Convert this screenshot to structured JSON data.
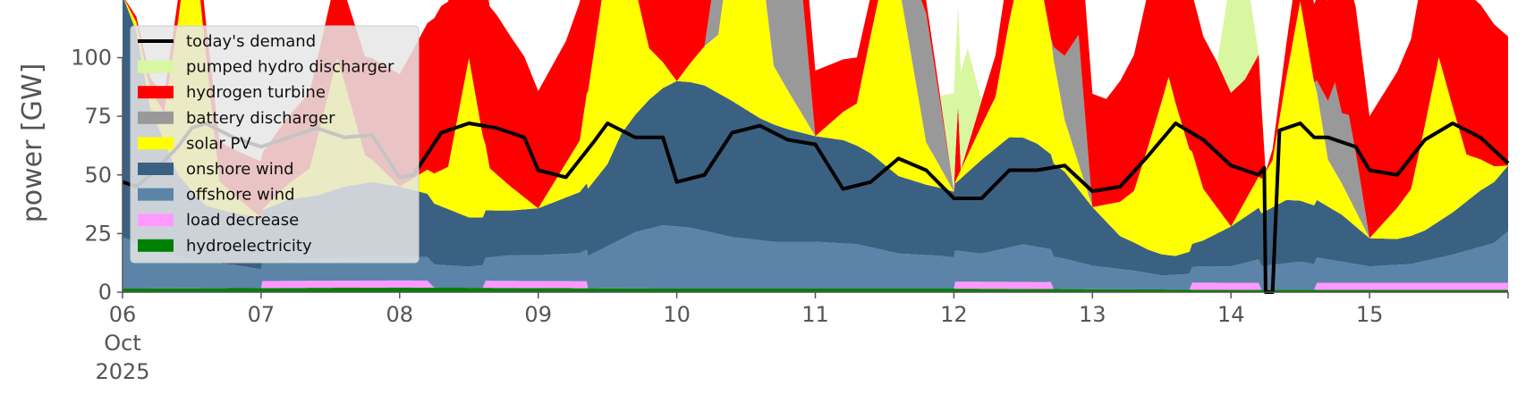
{
  "chart_data": {
    "type": "area",
    "ylabel": "power [GW]",
    "ylim": [
      0,
      120
    ],
    "xlim": [
      "2025-10-06 00:00",
      "2025-10-15 23:00"
    ],
    "yticks": [
      0,
      25,
      50,
      75,
      100
    ],
    "ytick_labels": [
      "0",
      "25",
      "50",
      "75",
      "100"
    ],
    "xticks": [
      "2025-10-06",
      "2025-10-07",
      "2025-10-08",
      "2025-10-09",
      "2025-10-10",
      "2025-10-11",
      "2025-10-12",
      "2025-10-13",
      "2025-10-14",
      "2025-10-15"
    ],
    "xtick_labels": [
      "06",
      "07",
      "08",
      "09",
      "10",
      "11",
      "12",
      "13",
      "14",
      "15"
    ],
    "xtick_sublabel_lines": [
      "Oct",
      "2025"
    ],
    "grid": false,
    "legend_position": "upper-left",
    "series": [
      {
        "name": "hydroelectricity",
        "color": "#008000",
        "x": [
          6.0,
          8.0,
          10.0,
          12.0,
          14.0,
          16.0
        ],
        "values": [
          1.5,
          2,
          1.5,
          1.5,
          1,
          1
        ]
      },
      {
        "name": "load decrease",
        "color": "#ff99ff",
        "x": [
          6.0,
          7.0,
          7.01,
          8.2,
          8.25,
          8.6,
          8.62,
          9.35,
          9.36,
          12.0,
          12.01,
          12.7,
          12.72,
          13.7,
          13.72,
          14.2,
          14.22,
          14.6,
          14.62,
          16.0
        ],
        "values": [
          0,
          0,
          3,
          3,
          0,
          0,
          3,
          3,
          0,
          0,
          3,
          3,
          0,
          0,
          3,
          3,
          0,
          0,
          3,
          3
        ]
      },
      {
        "name": "offshore wind",
        "color": "#5b84a8",
        "x": [
          6.0,
          6.2,
          6.5,
          6.8,
          7.0,
          7.3,
          7.6,
          7.9,
          8.2,
          8.5,
          8.8,
          9.0,
          9.3,
          9.5,
          9.7,
          9.9,
          10.1,
          10.4,
          10.7,
          11.0,
          11.3,
          11.6,
          11.9,
          12.2,
          12.5,
          12.8,
          13.0,
          13.3,
          13.5,
          13.8,
          14.0,
          14.2,
          14.5,
          14.8,
          15.0,
          15.3,
          15.6,
          15.9,
          16.0
        ],
        "values": [
          22,
          17,
          12,
          10,
          8,
          9,
          10,
          10,
          10,
          9,
          11,
          11,
          12,
          18,
          24,
          27,
          26,
          22,
          20,
          20,
          19,
          15,
          14,
          12,
          16,
          13,
          10,
          8,
          6,
          7,
          7,
          10,
          12,
          9,
          7,
          8,
          12,
          17,
          22
        ]
      },
      {
        "name": "onshore wind",
        "color": "#3b6182",
        "x": [
          6.0,
          6.1,
          6.2,
          6.4,
          6.6,
          6.8,
          7.0,
          7.2,
          7.4,
          7.6,
          7.8,
          8.0,
          8.2,
          8.5,
          8.8,
          9.0,
          9.3,
          9.5,
          9.6,
          9.8,
          10.0,
          10.2,
          10.4,
          10.6,
          10.8,
          11.0,
          11.2,
          11.4,
          11.6,
          11.8,
          12.0,
          12.2,
          12.4,
          12.6,
          12.8,
          13.0,
          13.2,
          13.4,
          13.6,
          13.8,
          14.0,
          14.2,
          14.4,
          14.6,
          14.8,
          15.0,
          15.2,
          15.4,
          15.6,
          15.8,
          16.0
        ],
        "values": [
          103,
          90,
          60,
          35,
          24,
          22,
          22,
          26,
          27,
          30,
          32,
          30,
          27,
          21,
          19,
          20,
          26,
          35,
          45,
          55,
          62,
          62,
          58,
          52,
          48,
          45,
          44,
          40,
          33,
          30,
          28,
          40,
          47,
          44,
          37,
          25,
          14,
          10,
          8,
          11,
          17,
          22,
          27,
          25,
          20,
          12,
          11,
          13,
          18,
          24,
          28
        ]
      },
      {
        "name": "solar PV",
        "color": "#ffff00",
        "x": [
          6.0,
          6.3,
          6.5,
          6.7,
          7.0,
          7.35,
          7.55,
          7.75,
          8.0,
          8.35,
          8.5,
          8.65,
          9.0,
          9.3,
          9.55,
          9.8,
          10.0,
          10.3,
          10.5,
          10.7,
          11.0,
          11.3,
          11.55,
          11.8,
          12.0,
          12.3,
          12.55,
          12.8,
          13.0,
          13.3,
          13.55,
          13.8,
          14.0,
          14.3,
          14.5,
          14.7,
          15.0,
          15.3,
          15.5,
          15.7,
          16.0
        ],
        "values": [
          0,
          12,
          118,
          12,
          0,
          12,
          56,
          12,
          0,
          18,
          68,
          18,
          0,
          22,
          103,
          22,
          0,
          25,
          118,
          25,
          0,
          18,
          99,
          18,
          0,
          22,
          91,
          22,
          0,
          22,
          76,
          22,
          0,
          20,
          85,
          20,
          0,
          20,
          70,
          20,
          0
        ]
      },
      {
        "name": "battery discharger",
        "color": "#999999",
        "x": [
          6.0,
          10.2,
          10.4,
          10.7,
          10.9,
          11.0,
          11.5,
          11.8,
          12.0,
          12.7,
          12.9,
          13.0,
          14.6,
          14.7,
          14.75,
          14.8,
          14.85,
          14.9,
          15.0
        ],
        "values": [
          0,
          0,
          70,
          70,
          55,
          0,
          0,
          55,
          0,
          0,
          55,
          0,
          0,
          25,
          38,
          30,
          35,
          25,
          0
        ]
      },
      {
        "name": "hydrogen turbine",
        "color": "#ff0000",
        "x": [
          6.0,
          8.0,
          8.1,
          8.3,
          8.5,
          8.7,
          8.9,
          9.0,
          9.2,
          9.4,
          9.5,
          12.0,
          12.03,
          12.05,
          12.8,
          12.95,
          13.1,
          13.3,
          13.45,
          13.6,
          13.7,
          13.9,
          14.1,
          14.2,
          14.25,
          14.9,
          15.0,
          15.2,
          15.4,
          15.6,
          15.8,
          16.0
        ],
        "values": [
          0,
          48,
          55,
          70,
          72,
          68,
          60,
          50,
          52,
          66,
          70,
          0,
          30,
          0,
          53,
          50,
          45,
          58,
          70,
          72,
          68,
          62,
          52,
          52,
          0,
          62,
          52,
          58,
          70,
          72,
          66,
          55
        ]
      },
      {
        "name": "pumped hydro discharger",
        "color": "#d9f7a0",
        "x": [
          6.0,
          11.9,
          12.0,
          12.1,
          12.2,
          13.9,
          14.0,
          14.1,
          14.2,
          16.0
        ],
        "values": [
          0,
          0,
          42,
          42,
          0,
          0,
          50,
          50,
          0,
          0
        ]
      }
    ],
    "demand": {
      "name": "today's demand",
      "color": "#000000",
      "x": [
        6.0,
        6.1,
        6.2,
        6.4,
        6.5,
        6.6,
        6.8,
        7.0,
        7.2,
        7.4,
        7.6,
        7.8,
        8.0,
        8.1,
        8.3,
        8.5,
        8.7,
        8.9,
        9.0,
        9.2,
        9.4,
        9.5,
        9.7,
        9.9,
        10.0,
        10.2,
        10.4,
        10.6,
        10.8,
        11.0,
        11.2,
        11.4,
        11.6,
        11.8,
        12.0,
        12.2,
        12.4,
        12.6,
        12.8,
        13.0,
        13.2,
        13.4,
        13.6,
        13.8,
        14.0,
        14.2,
        14.24,
        14.25,
        14.3,
        14.35,
        14.4,
        14.5,
        14.6,
        14.7,
        14.9,
        15.0,
        15.2,
        15.4,
        15.6,
        15.8,
        16.0
      ],
      "values": [
        47,
        45,
        50,
        62,
        70,
        72,
        66,
        62,
        66,
        70,
        66,
        67,
        49,
        50,
        68,
        72,
        70,
        66,
        52,
        49,
        64,
        72,
        66,
        66,
        47,
        50,
        68,
        71,
        65,
        63,
        44,
        47,
        57,
        52,
        40,
        40,
        52,
        52,
        54,
        43,
        45,
        58,
        72,
        65,
        54,
        50,
        53,
        0,
        0,
        69,
        70,
        72,
        66,
        66,
        62,
        52,
        50,
        65,
        72,
        66,
        55
      ]
    }
  }
}
